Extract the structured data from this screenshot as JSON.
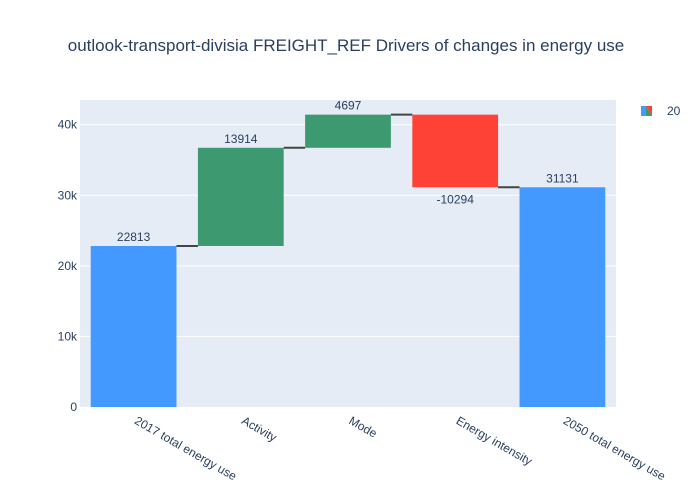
{
  "chart_data": {
    "type": "waterfall",
    "title": "outlook-transport-divisia FREIGHT_REF Drivers of changes in energy use",
    "xlabel": "",
    "ylabel": "",
    "categories": [
      "2017 total energy use",
      "Activity",
      "Mode",
      "Energy intensity",
      "2050 total energy use"
    ],
    "measures": [
      "absolute",
      "relative",
      "relative",
      "relative",
      "total"
    ],
    "values": [
      22813,
      13914,
      4697,
      -10294,
      31131
    ],
    "text_labels": [
      "22813",
      "13914",
      "4697",
      "-10294",
      "31131"
    ],
    "ylim": [
      0,
      43500
    ],
    "yticks": [
      0,
      10000,
      20000,
      30000,
      40000
    ],
    "ytick_labels": [
      "0",
      "10k",
      "20k",
      "30k",
      "40k"
    ],
    "grid": true,
    "legend": {
      "position": "top-right",
      "entries": [
        "20"
      ]
    },
    "colors": {
      "total": "#4499ff",
      "increasing": "#3d9970",
      "decreasing": "#ff4136",
      "connector": "#444444",
      "plot_bg": "#e5ecf6",
      "grid": "#ffffff",
      "text": "#2a3f5f"
    }
  }
}
